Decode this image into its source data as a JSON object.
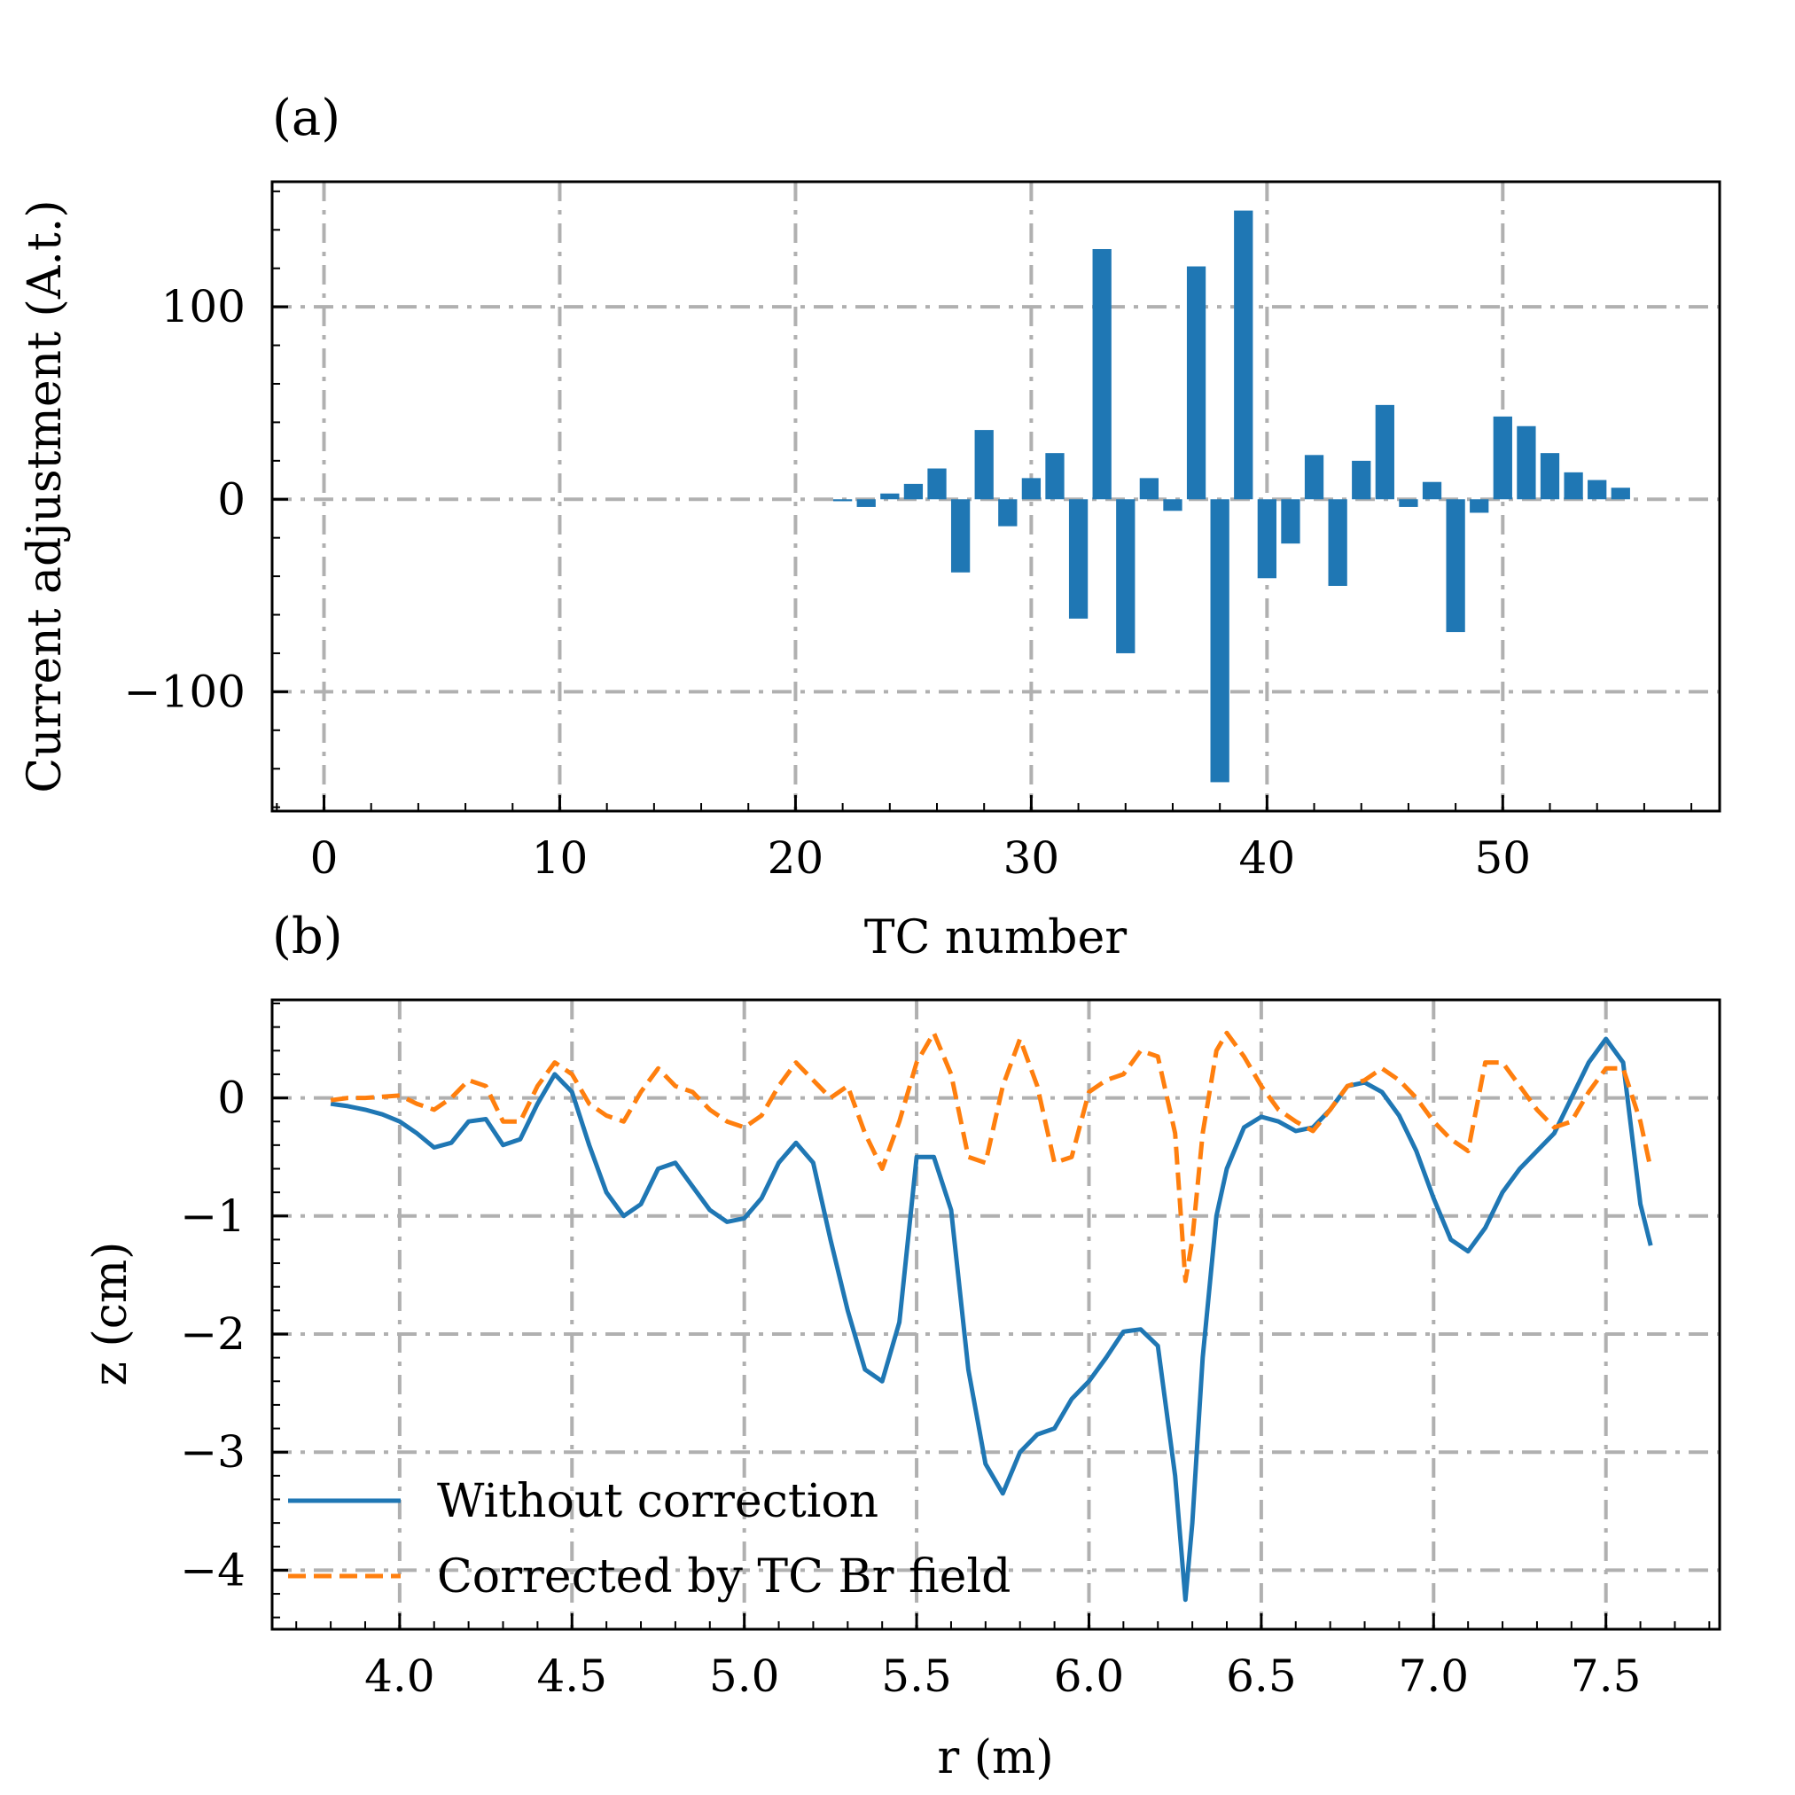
{
  "chart_data": [
    {
      "panel": "(a)",
      "type": "bar",
      "title": "",
      "xlabel": "TC number",
      "ylabel": "Current adjustment (A.t.)",
      "xlim": [
        -2.2,
        59.2
      ],
      "ylim": [
        -162,
        165
      ],
      "xticks": [
        0,
        10,
        20,
        30,
        40,
        50
      ],
      "xtick_labels": [
        "0",
        "10",
        "20",
        "30",
        "40",
        "50"
      ],
      "yticks": [
        -100,
        0,
        100
      ],
      "ytick_labels": [
        "−100",
        "0",
        "100"
      ],
      "grid": true,
      "color": "#1f77b4",
      "x": [
        22,
        23,
        24,
        25,
        26,
        27,
        28,
        29,
        30,
        31,
        32,
        33,
        34,
        35,
        36,
        37,
        38,
        39,
        40,
        41,
        42,
        43,
        44,
        45,
        46,
        47,
        48,
        49,
        50,
        51,
        52,
        53,
        54,
        55
      ],
      "values": [
        -1,
        -4,
        3,
        8,
        16,
        -38,
        36,
        -14,
        11,
        24,
        -62,
        130,
        -80,
        11,
        -6,
        121,
        -147,
        150,
        -41,
        -23,
        23,
        -45,
        20,
        49,
        -4,
        9,
        -69,
        -7,
        43,
        38,
        24,
        14,
        10,
        6
      ]
    },
    {
      "panel": "(b)",
      "type": "line",
      "title": "",
      "xlabel": "r (m)",
      "ylabel": "z (cm)",
      "xlim": [
        3.63,
        7.83
      ],
      "ylim": [
        -4.5,
        0.83
      ],
      "xticks": [
        4.0,
        4.5,
        5.0,
        5.5,
        6.0,
        6.5,
        7.0,
        7.5
      ],
      "xtick_labels": [
        "4.0",
        "4.5",
        "5.0",
        "5.5",
        "6.0",
        "6.5",
        "7.0",
        "7.5"
      ],
      "yticks": [
        -4,
        -3,
        -2,
        -1,
        0
      ],
      "ytick_labels": [
        "−4",
        "−3",
        "−2",
        "−1",
        "0"
      ],
      "grid": true,
      "legend_position": "lower-left",
      "series": [
        {
          "name": "Without correction",
          "color": "#1f77b4",
          "style": "solid",
          "x": [
            3.8,
            3.85,
            3.9,
            3.95,
            4.0,
            4.05,
            4.1,
            4.15,
            4.2,
            4.25,
            4.3,
            4.35,
            4.4,
            4.45,
            4.5,
            4.55,
            4.6,
            4.65,
            4.7,
            4.75,
            4.8,
            4.85,
            4.9,
            4.95,
            5.0,
            5.05,
            5.1,
            5.15,
            5.2,
            5.25,
            5.3,
            5.35,
            5.4,
            5.45,
            5.5,
            5.55,
            5.6,
            5.65,
            5.7,
            5.75,
            5.8,
            5.85,
            5.9,
            5.95,
            6.0,
            6.05,
            6.1,
            6.15,
            6.2,
            6.25,
            6.28,
            6.3,
            6.33,
            6.37,
            6.4,
            6.45,
            6.5,
            6.55,
            6.6,
            6.65,
            6.7,
            6.75,
            6.8,
            6.85,
            6.9,
            6.95,
            7.0,
            7.05,
            7.1,
            7.15,
            7.2,
            7.25,
            7.3,
            7.35,
            7.4,
            7.45,
            7.5,
            7.55,
            7.6,
            7.63
          ],
          "y": [
            -0.05,
            -0.07,
            -0.1,
            -0.14,
            -0.2,
            -0.3,
            -0.42,
            -0.38,
            -0.2,
            -0.18,
            -0.4,
            -0.35,
            -0.05,
            0.2,
            0.05,
            -0.4,
            -0.8,
            -1.0,
            -0.9,
            -0.6,
            -0.55,
            -0.75,
            -0.95,
            -1.05,
            -1.02,
            -0.85,
            -0.55,
            -0.38,
            -0.55,
            -1.2,
            -1.8,
            -2.3,
            -2.4,
            -1.9,
            -0.5,
            -0.5,
            -0.95,
            -2.3,
            -3.1,
            -3.35,
            -3.0,
            -2.85,
            -2.8,
            -2.55,
            -2.4,
            -2.2,
            -1.98,
            -1.96,
            -2.1,
            -3.2,
            -4.25,
            -3.6,
            -2.2,
            -1.0,
            -0.6,
            -0.25,
            -0.16,
            -0.2,
            -0.28,
            -0.25,
            -0.1,
            0.1,
            0.13,
            0.05,
            -0.15,
            -0.45,
            -0.85,
            -1.2,
            -1.3,
            -1.1,
            -0.8,
            -0.6,
            -0.45,
            -0.3,
            0.0,
            0.3,
            0.5,
            0.3,
            -0.9,
            -1.25
          ]
        },
        {
          "name": "Corrected by TC Br field",
          "color": "#ff7f0e",
          "style": "dashed",
          "x": [
            3.8,
            3.85,
            3.9,
            3.95,
            4.0,
            4.05,
            4.1,
            4.15,
            4.2,
            4.25,
            4.3,
            4.35,
            4.4,
            4.45,
            4.5,
            4.55,
            4.6,
            4.65,
            4.7,
            4.75,
            4.8,
            4.85,
            4.9,
            4.95,
            5.0,
            5.05,
            5.1,
            5.15,
            5.2,
            5.25,
            5.3,
            5.35,
            5.4,
            5.45,
            5.5,
            5.55,
            5.6,
            5.65,
            5.7,
            5.75,
            5.8,
            5.85,
            5.9,
            5.95,
            6.0,
            6.05,
            6.1,
            6.15,
            6.2,
            6.25,
            6.28,
            6.3,
            6.33,
            6.37,
            6.4,
            6.45,
            6.5,
            6.55,
            6.6,
            6.65,
            6.7,
            6.75,
            6.8,
            6.85,
            6.9,
            6.95,
            7.0,
            7.05,
            7.1,
            7.15,
            7.2,
            7.25,
            7.3,
            7.35,
            7.4,
            7.45,
            7.5,
            7.55,
            7.6,
            7.63
          ],
          "y": [
            -0.02,
            0.0,
            0.0,
            0.01,
            0.02,
            -0.05,
            -0.1,
            0.0,
            0.15,
            0.1,
            -0.2,
            -0.2,
            0.1,
            0.3,
            0.2,
            -0.05,
            -0.15,
            -0.2,
            0.05,
            0.25,
            0.1,
            0.05,
            -0.1,
            -0.2,
            -0.25,
            -0.15,
            0.1,
            0.3,
            0.15,
            0.0,
            0.1,
            -0.3,
            -0.6,
            -0.2,
            0.3,
            0.55,
            0.2,
            -0.5,
            -0.55,
            0.1,
            0.5,
            0.1,
            -0.55,
            -0.5,
            0.05,
            0.15,
            0.2,
            0.4,
            0.35,
            -0.3,
            -1.55,
            -1.2,
            -0.3,
            0.4,
            0.55,
            0.35,
            0.1,
            -0.1,
            -0.2,
            -0.28,
            -0.1,
            0.1,
            0.15,
            0.25,
            0.15,
            0.0,
            -0.2,
            -0.35,
            -0.45,
            0.3,
            0.3,
            0.1,
            -0.1,
            -0.25,
            -0.2,
            0.05,
            0.25,
            0.25,
            -0.2,
            -0.6
          ]
        }
      ]
    }
  ],
  "legend": {
    "items": [
      {
        "label": "Without correction",
        "color": "#1f77b4",
        "style": "solid"
      },
      {
        "label": "Corrected by TC Br field",
        "color": "#ff7f0e",
        "style": "dashed"
      }
    ]
  },
  "panel_labels": {
    "a": "(a)",
    "b": "(b)"
  }
}
